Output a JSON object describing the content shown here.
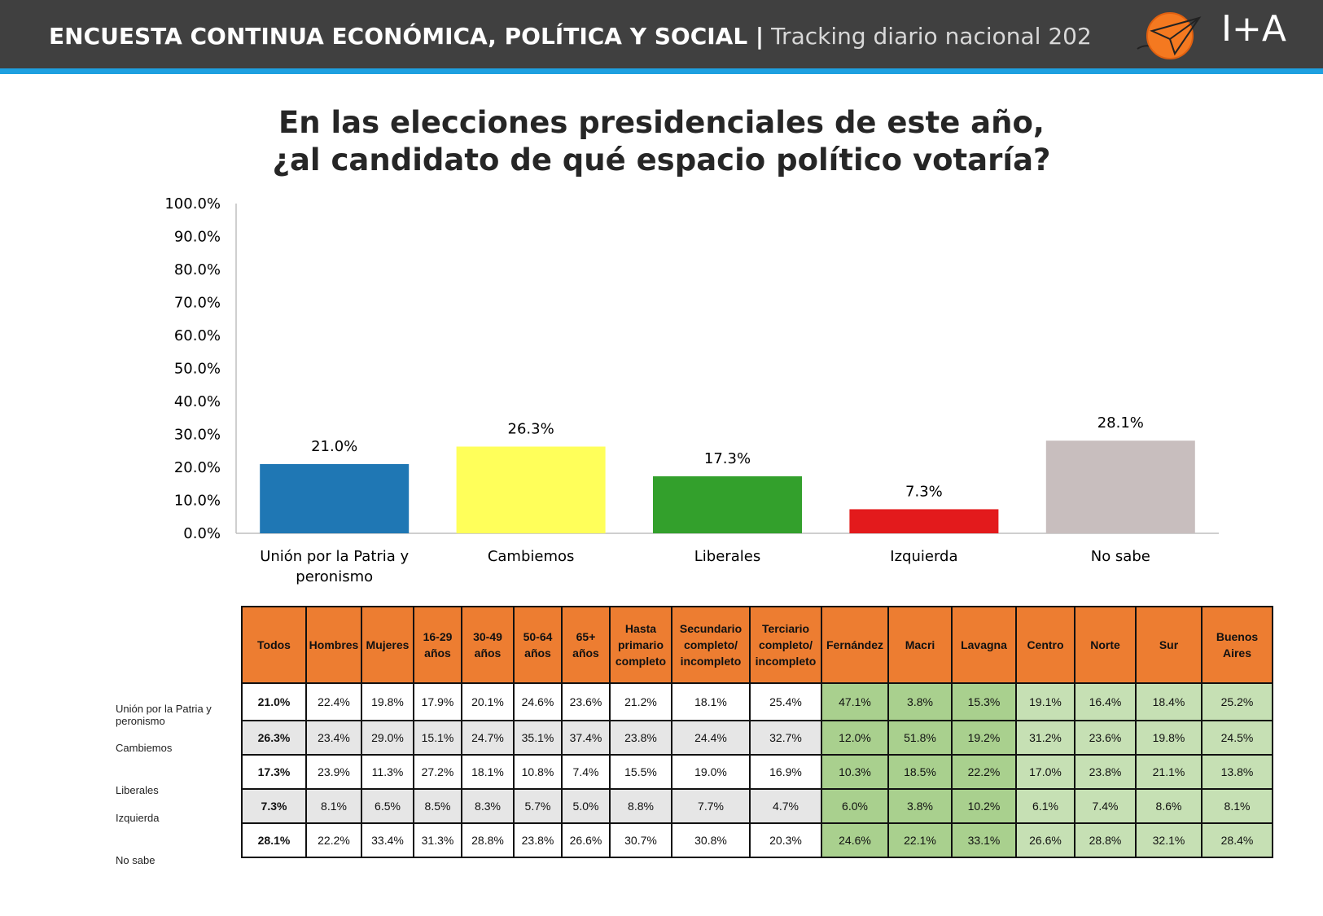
{
  "header": {
    "title_bold": "ENCUESTA CONTINUA ECONÓMICA, POLÍTICA Y SOCIAL |",
    "title_light": "Tracking diario nacional 202",
    "brand": "I+A",
    "colors": {
      "bar": "#404040",
      "stripe": "#1ea0e0",
      "logo": "#f47920"
    }
  },
  "question": {
    "line1": "En las elecciones presidenciales de este año,",
    "line2": "¿al candidato de qué espacio político votaría?"
  },
  "chart_data": {
    "type": "bar",
    "categories": [
      "Unión por la Patria y peronismo",
      "Cambiemos",
      "Liberales",
      "Izquierda",
      "No sabe"
    ],
    "values": [
      21.0,
      26.3,
      17.3,
      7.3,
      28.1
    ],
    "value_labels": [
      "21.0%",
      "26.3%",
      "17.3%",
      "7.3%",
      "28.1%"
    ],
    "colors": [
      "#1f77b4",
      "#ffff5a",
      "#33a02c",
      "#e31a1c",
      "#c8bebe"
    ],
    "ylim": [
      0,
      100
    ],
    "yticks": [
      "0.0%",
      "10.0%",
      "20.0%",
      "30.0%",
      "40.0%",
      "50.0%",
      "60.0%",
      "70.0%",
      "80.0%",
      "90.0%",
      "100.0%"
    ],
    "grid": false,
    "title": "",
    "xlabel": "",
    "ylabel": ""
  },
  "table": {
    "headers": [
      "Todos",
      "Hombres",
      "Mujeres",
      "16-29 años",
      "30-49 años",
      "50-64 años",
      "65+ años",
      "Hasta primario completo",
      "Secundario completo/ incompleto",
      "Terciario completo/ incompleto",
      "Fernández",
      "Macri",
      "Lavagna",
      "Centro",
      "Norte",
      "Sur",
      "Buenos Aires"
    ],
    "row_labels": [
      "Unión por la Patria y peronismo",
      "Cambiemos",
      "Liberales",
      "Izquierda",
      "No sabe"
    ],
    "rows": [
      [
        "21.0%",
        "22.4%",
        "19.8%",
        "17.9%",
        "20.1%",
        "24.6%",
        "23.6%",
        "21.2%",
        "18.1%",
        "25.4%",
        "47.1%",
        "3.8%",
        "15.3%",
        "19.1%",
        "16.4%",
        "18.4%",
        "25.2%"
      ],
      [
        "26.3%",
        "23.4%",
        "29.0%",
        "15.1%",
        "24.7%",
        "35.1%",
        "37.4%",
        "23.8%",
        "24.4%",
        "32.7%",
        "12.0%",
        "51.8%",
        "19.2%",
        "31.2%",
        "23.6%",
        "19.8%",
        "24.5%"
      ],
      [
        "17.3%",
        "23.9%",
        "11.3%",
        "27.2%",
        "18.1%",
        "10.8%",
        "7.4%",
        "15.5%",
        "19.0%",
        "16.9%",
        "10.3%",
        "18.5%",
        "22.2%",
        "17.0%",
        "23.8%",
        "21.1%",
        "13.8%"
      ],
      [
        "7.3%",
        "8.1%",
        "6.5%",
        "8.5%",
        "8.3%",
        "5.7%",
        "5.0%",
        "8.8%",
        "7.7%",
        "4.7%",
        "6.0%",
        "3.8%",
        "10.2%",
        "6.1%",
        "7.4%",
        "8.6%",
        "8.1%"
      ],
      [
        "28.1%",
        "22.2%",
        "33.4%",
        "31.3%",
        "28.8%",
        "23.8%",
        "26.6%",
        "30.7%",
        "30.8%",
        "20.3%",
        "24.6%",
        "22.1%",
        "33.1%",
        "26.6%",
        "28.8%",
        "32.1%",
        "28.4%"
      ]
    ],
    "colors": {
      "header": "#ed7d31",
      "green_light": "#c6e0b4",
      "green_dark": "#a9d08e",
      "shade": "#e6e6e6"
    }
  }
}
